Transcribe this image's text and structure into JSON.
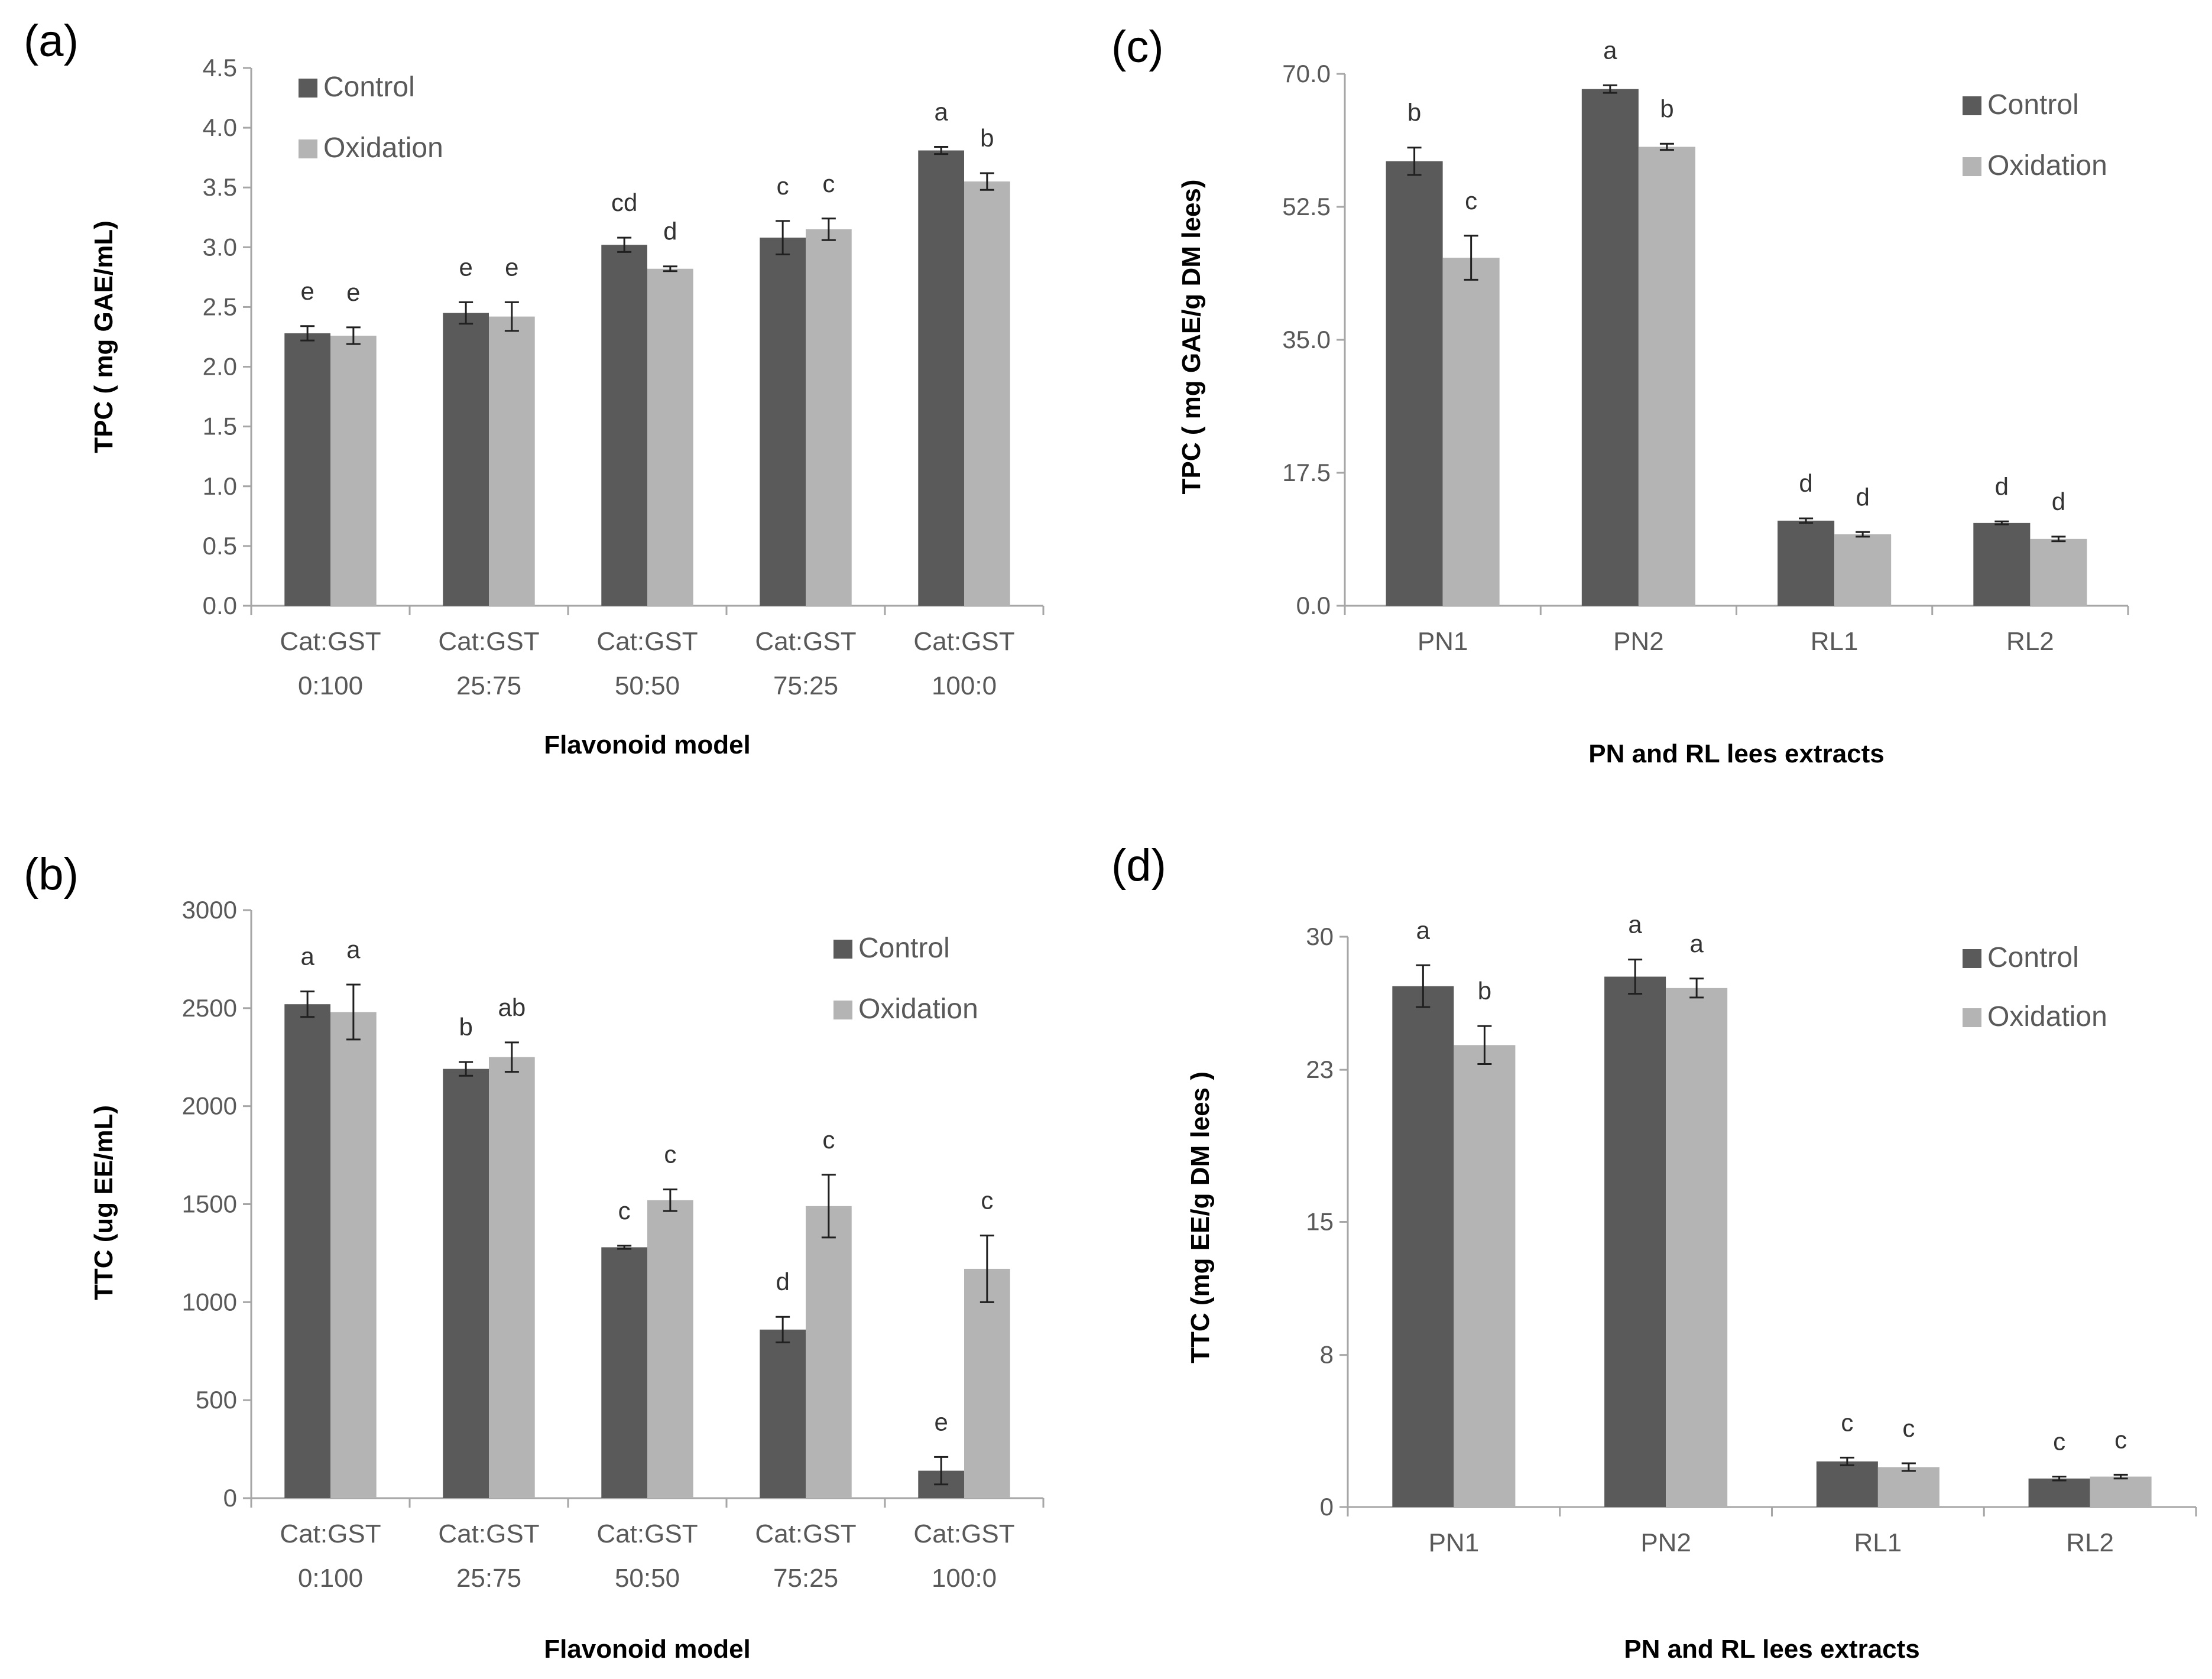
{
  "colors": {
    "control": "#5a5a5a",
    "oxidation": "#b4b4b4",
    "axis": "#a6a6a6",
    "error": "#202020"
  },
  "chart_data": [
    {
      "panel": "(a)",
      "type": "bar",
      "ylabel": "TPC ( mg GAE/mL)",
      "xlabel": "Flavonoid model",
      "ylim": [
        0,
        4.5
      ],
      "yticks": [
        "0.0",
        "0.5",
        "1.0",
        "1.5",
        "2.0",
        "2.5",
        "3.0",
        "3.5",
        "4.0",
        "4.5"
      ],
      "categories": [
        [
          "Cat:GST",
          "0:100"
        ],
        [
          "Cat:GST",
          "25:75"
        ],
        [
          "Cat:GST",
          "50:50"
        ],
        [
          "Cat:GST",
          "75:25"
        ],
        [
          "Cat:GST",
          "100:0"
        ]
      ],
      "legend": {
        "position": "top-left",
        "items": [
          "Control",
          "Oxidation"
        ]
      },
      "series": [
        {
          "name": "Control",
          "values": [
            2.28,
            2.45,
            3.02,
            3.08,
            3.81
          ],
          "errors": [
            0.06,
            0.09,
            0.06,
            0.14,
            0.03
          ],
          "letters": [
            "e",
            "e",
            "cd",
            "c",
            "a"
          ]
        },
        {
          "name": "Oxidation",
          "values": [
            2.26,
            2.42,
            2.82,
            3.15,
            3.55
          ],
          "errors": [
            0.07,
            0.12,
            0.02,
            0.09,
            0.07
          ],
          "letters": [
            "e",
            "e",
            "d",
            "c",
            "b"
          ]
        }
      ]
    },
    {
      "panel": "(b)",
      "type": "bar",
      "ylabel": "TTC (ug EE/mL)",
      "xlabel": "Flavonoid model",
      "ylim": [
        0,
        3000
      ],
      "yticks": [
        "0",
        "500",
        "1000",
        "1500",
        "2000",
        "2500",
        "3000"
      ],
      "categories": [
        [
          "Cat:GST",
          "0:100"
        ],
        [
          "Cat:GST",
          "25:75"
        ],
        [
          "Cat:GST",
          "50:50"
        ],
        [
          "Cat:GST",
          "75:25"
        ],
        [
          "Cat:GST",
          "100:0"
        ]
      ],
      "legend": {
        "position": "top-right",
        "items": [
          "Control",
          "Oxidation"
        ]
      },
      "series": [
        {
          "name": "Control",
          "values": [
            2520,
            2190,
            1280,
            860,
            140
          ],
          "errors": [
            65,
            35,
            8,
            65,
            70
          ],
          "letters": [
            "a",
            "b",
            "c",
            "d",
            "e"
          ]
        },
        {
          "name": "Oxidation",
          "values": [
            2480,
            2250,
            1520,
            1490,
            1170
          ],
          "errors": [
            140,
            75,
            55,
            160,
            170
          ],
          "letters": [
            "a",
            "ab",
            "c",
            "c",
            "c"
          ]
        }
      ]
    },
    {
      "panel": "(c)",
      "type": "bar",
      "ylabel": "TPC ( mg GAE/g DM lees)",
      "xlabel": "PN and RL lees extracts",
      "ylim": [
        0,
        70
      ],
      "yticks": [
        "0.0",
        "17.5",
        "35.0",
        "52.5",
        "70.0"
      ],
      "categories": [
        [
          "PN1"
        ],
        [
          "PN2"
        ],
        [
          "RL1"
        ],
        [
          "RL2"
        ]
      ],
      "legend": {
        "position": "top-right",
        "items": [
          "Control",
          "Oxidation"
        ]
      },
      "series": [
        {
          "name": "Control",
          "values": [
            58.5,
            68.0,
            11.2,
            10.9
          ],
          "errors": [
            1.8,
            0.5,
            0.3,
            0.2
          ],
          "letters": [
            "b",
            "a",
            "d",
            "d"
          ]
        },
        {
          "name": "Oxidation",
          "values": [
            45.8,
            60.4,
            9.4,
            8.8
          ],
          "errors": [
            2.9,
            0.4,
            0.3,
            0.3
          ],
          "letters": [
            "c",
            "b",
            "d",
            "d"
          ]
        }
      ]
    },
    {
      "panel": "(d)",
      "type": "bar",
      "ylabel": "TTC (mg EE/g DM lees )",
      "xlabel": "PN and RL lees extracts",
      "ylim": [
        0,
        30
      ],
      "yticks": [
        "0",
        "8",
        "15",
        "23",
        "30"
      ],
      "categories": [
        [
          "PN1"
        ],
        [
          "PN2"
        ],
        [
          "RL1"
        ],
        [
          "RL2"
        ]
      ],
      "legend": {
        "position": "top-right",
        "items": [
          "Control",
          "Oxidation"
        ]
      },
      "series": [
        {
          "name": "Control",
          "values": [
            27.4,
            27.9,
            2.4,
            1.5
          ],
          "errors": [
            1.1,
            0.9,
            0.2,
            0.1
          ],
          "letters": [
            "a",
            "a",
            "c",
            "c"
          ]
        },
        {
          "name": "Oxidation",
          "values": [
            24.3,
            27.3,
            2.1,
            1.6
          ],
          "errors": [
            1.0,
            0.5,
            0.2,
            0.1
          ],
          "letters": [
            "b",
            "a",
            "c",
            "c"
          ]
        }
      ]
    }
  ]
}
